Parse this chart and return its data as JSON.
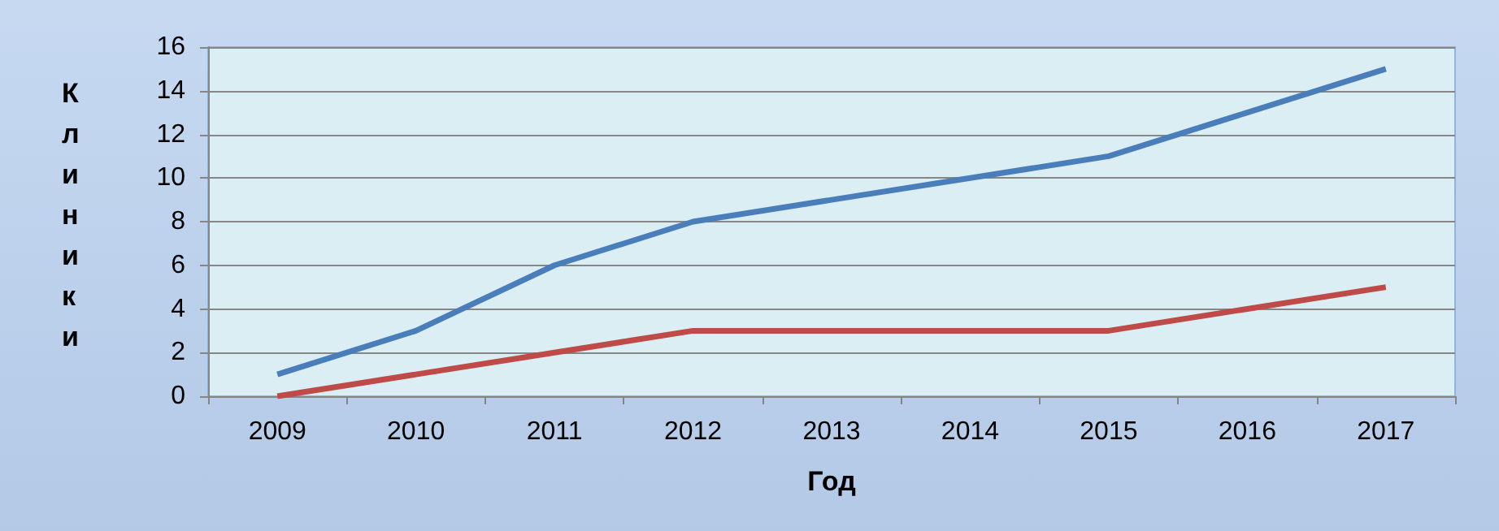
{
  "chart_data": {
    "type": "line",
    "xlabel": "Год",
    "ylabel": "Клиники",
    "categories": [
      "2009",
      "2010",
      "2011",
      "2012",
      "2013",
      "2014",
      "2015",
      "2016",
      "2017"
    ],
    "series": [
      {
        "color": "#4a7ebb",
        "values": [
          1,
          3,
          6,
          8,
          9,
          10,
          11,
          13,
          15
        ]
      },
      {
        "color": "#be4b48",
        "values": [
          0,
          1,
          2,
          3,
          3,
          3,
          3,
          4,
          5
        ]
      }
    ],
    "ylim": [
      0,
      16
    ],
    "yticks": [
      0,
      2,
      4,
      6,
      8,
      10,
      12,
      14,
      16
    ],
    "grid": "y",
    "marker": "none",
    "line_style": "solid"
  }
}
